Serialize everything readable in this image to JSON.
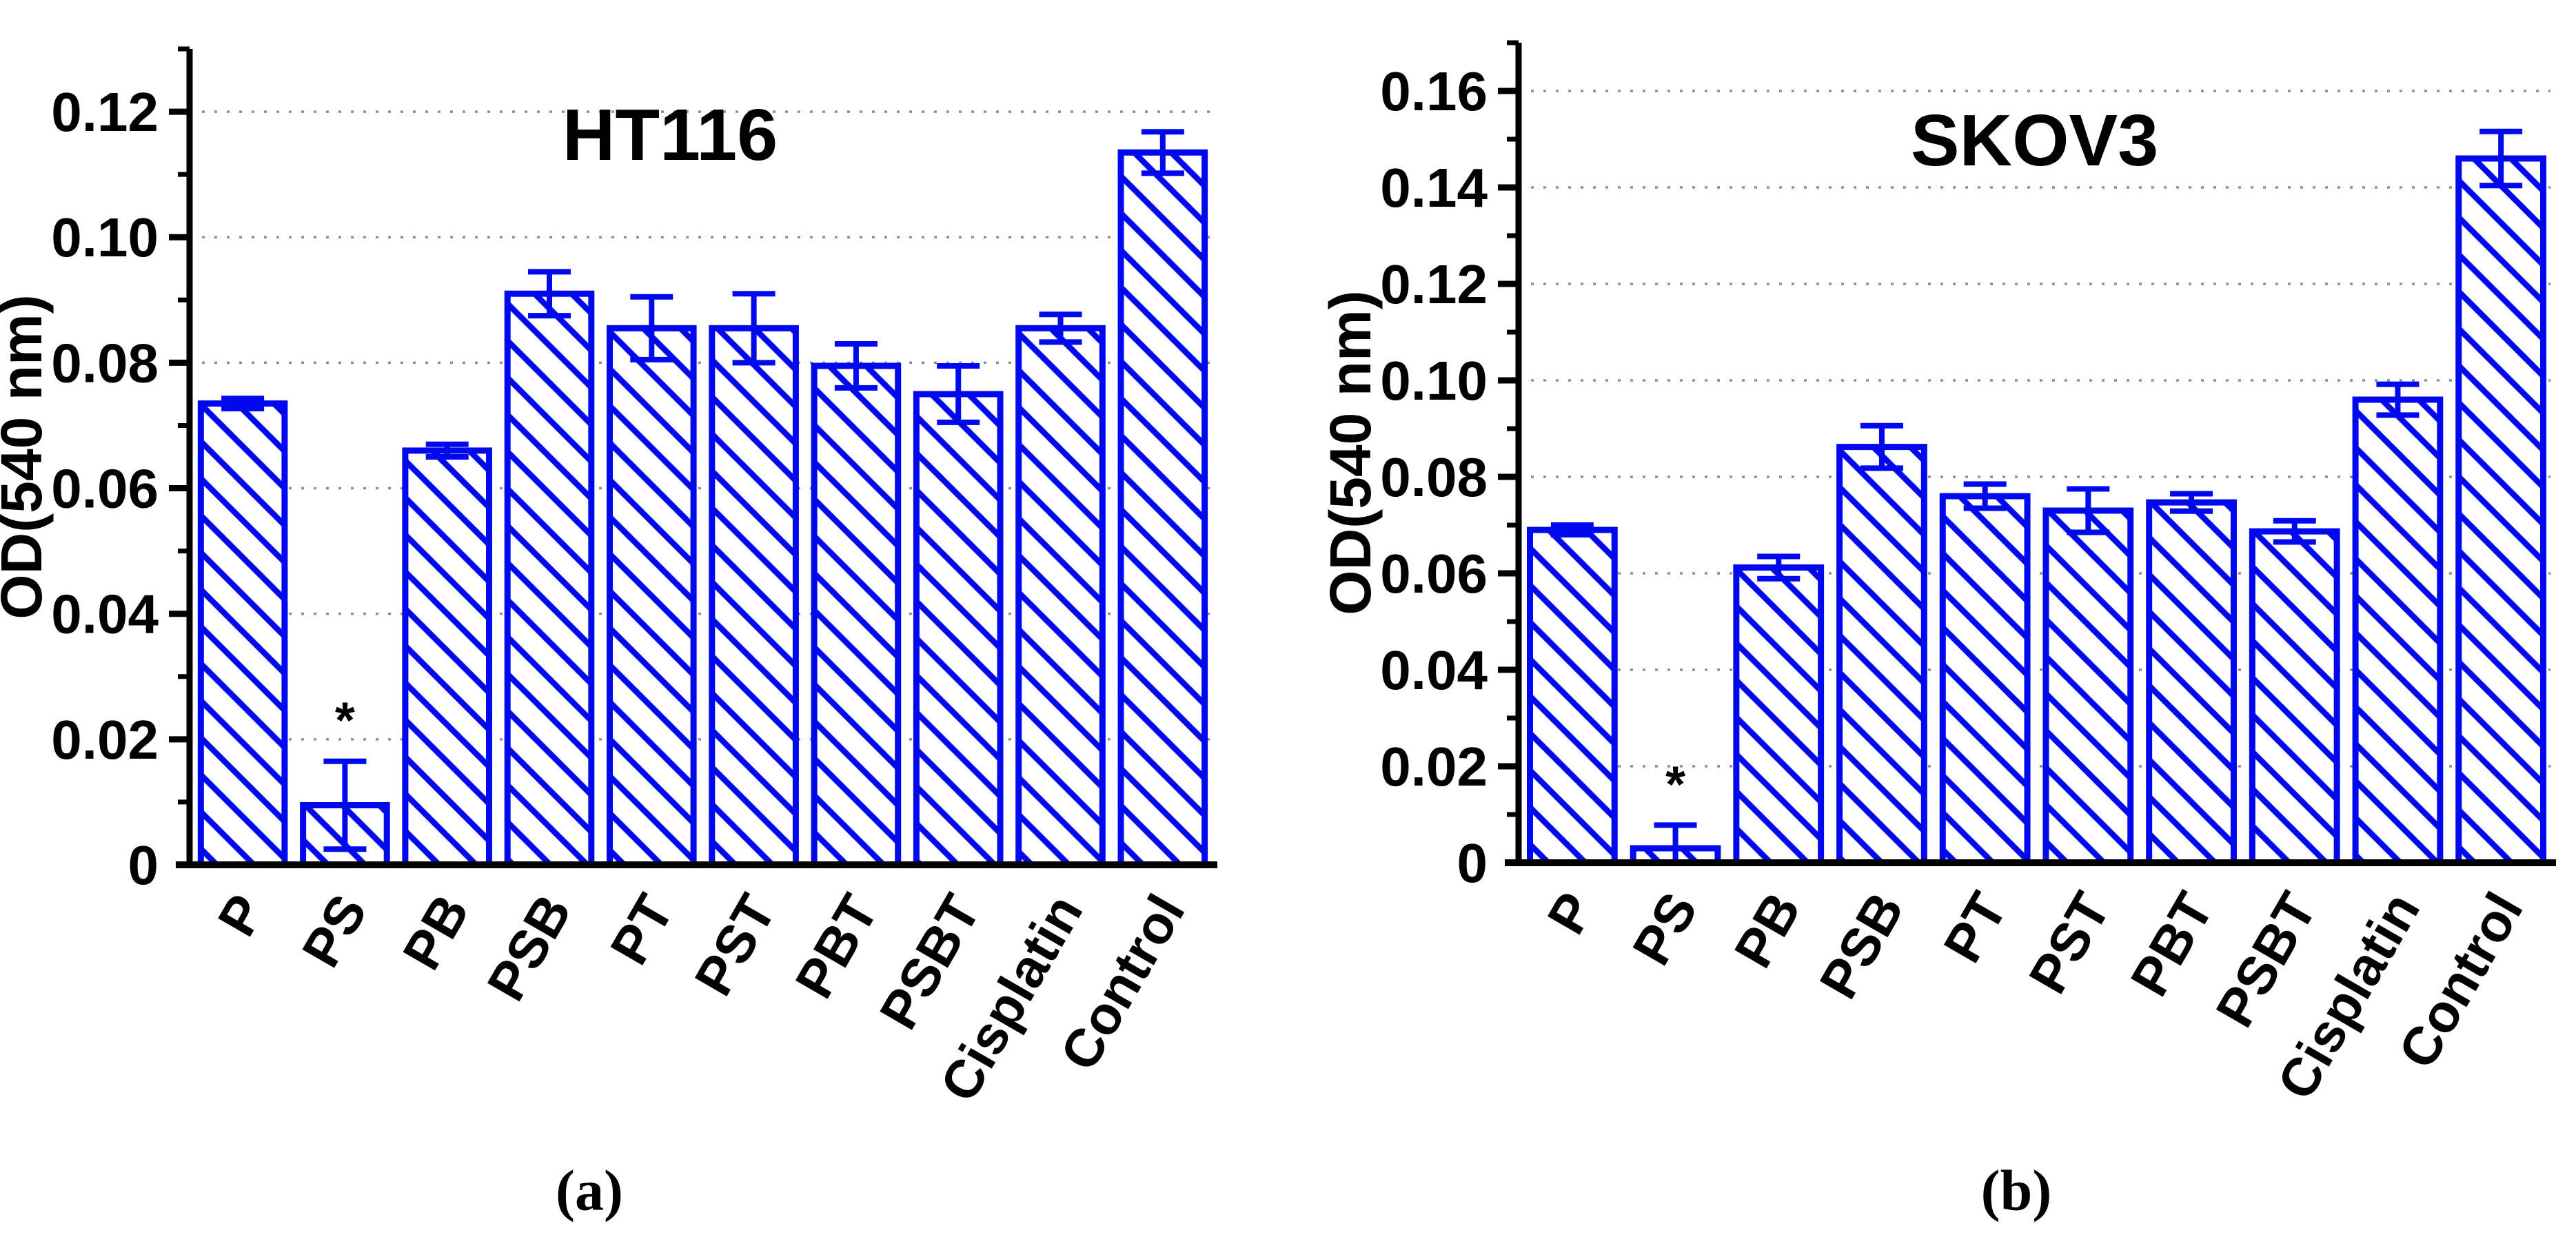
{
  "figure": {
    "captions": {
      "a": "(a)",
      "b": "(b)"
    }
  },
  "colors": {
    "bar_edge": "#0008EE",
    "axis": "#000000",
    "grid": "#8F8F8F",
    "text": "#000000",
    "background": "#FFFFFF",
    "star": "#000000"
  },
  "chart_data": [
    {
      "id": "a",
      "type": "bar",
      "title": "HT116",
      "ylabel": "OD(540 nm)",
      "xlabel": "",
      "legend": "none",
      "grid": "horizontal-dotted",
      "hatch": "diagonal-down",
      "categories": [
        "P",
        "PS",
        "PB",
        "PSB",
        "PT",
        "PST",
        "PBT",
        "PSBT",
        "Cisplatin",
        "Control"
      ],
      "values": [
        0.0735,
        0.0095,
        0.066,
        0.091,
        0.0855,
        0.0855,
        0.0795,
        0.075,
        0.0855,
        0.1135
      ],
      "errors": [
        0.0008,
        0.007,
        0.001,
        0.0035,
        0.005,
        0.0055,
        0.0035,
        0.0045,
        0.0022,
        0.0033
      ],
      "significance": [
        "",
        "*",
        "",
        "",
        "",
        "",
        "",
        "",
        "",
        ""
      ],
      "ylim": [
        0,
        0.13
      ],
      "yticks": [
        0,
        0.02,
        0.04,
        0.06,
        0.08,
        0.1,
        0.12
      ],
      "ytick_labels": [
        "0",
        "0.02",
        "0.04",
        "0.06",
        "0.08",
        "0.10",
        "0.12"
      ],
      "minor_tick_step": 0.01
    },
    {
      "id": "b",
      "type": "bar",
      "title": "SKOV3",
      "ylabel": "OD(540 nm)",
      "xlabel": "",
      "legend": "none",
      "grid": "horizontal-dotted",
      "hatch": "diagonal-down",
      "categories": [
        "P",
        "PS",
        "PB",
        "PSB",
        "PT",
        "PST",
        "PBT",
        "PSBT",
        "Cisplatin",
        "Control"
      ],
      "values": [
        0.069,
        0.003,
        0.0612,
        0.0862,
        0.076,
        0.073,
        0.0747,
        0.0687,
        0.096,
        0.146
      ],
      "errors": [
        0.001,
        0.0048,
        0.0023,
        0.0044,
        0.0025,
        0.0045,
        0.0018,
        0.0022,
        0.0032,
        0.0056
      ],
      "significance": [
        "",
        "*",
        "",
        "",
        "",
        "",
        "",
        "",
        "",
        ""
      ],
      "ylim": [
        0,
        0.17
      ],
      "yticks": [
        0,
        0.02,
        0.04,
        0.06,
        0.08,
        0.1,
        0.12,
        0.14,
        0.16
      ],
      "ytick_labels": [
        "0",
        "0.02",
        "0.04",
        "0.06",
        "0.08",
        "0.10",
        "0.12",
        "0.14",
        "0.16"
      ],
      "minor_tick_step": 0.01
    }
  ]
}
